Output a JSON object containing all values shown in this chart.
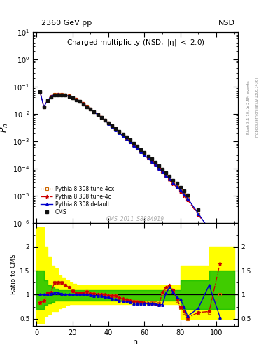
{
  "title_top": "2360 GeV pp",
  "title_top_right": "NSD",
  "main_title": "Charged multiplicity",
  "main_title_note": "(NSD, |#eta| < 2.0)",
  "ylabel_main": "P_n",
  "ylabel_ratio": "Ratio to CMS",
  "xlabel": "n",
  "watermark": "CMS_2011_S8884919",
  "right_label1": "Rivet 3.1.10, ≥ 2.5M events",
  "right_label2": "mcplots.cern.ch [arXiv:1306.3436]",
  "ylim_main": [
    1e-06,
    10
  ],
  "ylim_ratio": [
    0.35,
    2.5
  ],
  "xlim": [
    -2,
    112
  ],
  "legend": [
    "CMS",
    "Pythia 8.308 default",
    "Pythia 8.308 tune-4c",
    "Pythia 8.308 tune-4cx"
  ],
  "cms_n": [
    2,
    4,
    6,
    8,
    10,
    12,
    14,
    16,
    18,
    20,
    22,
    24,
    26,
    28,
    30,
    32,
    34,
    36,
    38,
    40,
    42,
    44,
    46,
    48,
    50,
    52,
    54,
    56,
    58,
    60,
    62,
    64,
    66,
    68,
    70,
    72,
    74,
    76,
    78,
    80,
    82,
    84,
    90,
    96,
    102
  ],
  "cms_pn": [
    0.065,
    0.018,
    0.03,
    0.042,
    0.048,
    0.05,
    0.05,
    0.048,
    0.044,
    0.038,
    0.033,
    0.028,
    0.023,
    0.018,
    0.015,
    0.012,
    0.0095,
    0.0075,
    0.006,
    0.0047,
    0.0037,
    0.0029,
    0.0023,
    0.0018,
    0.0014,
    0.0011,
    0.00085,
    0.00065,
    0.0005,
    0.00038,
    0.00029,
    0.00022,
    0.000165,
    0.000125,
    9.3e-05,
    6.9e-05,
    5.1e-05,
    3.7e-05,
    2.8e-05,
    2e-05,
    1.48e-05,
    1.05e-05,
    3e-06,
    8e-07,
    2.2e-07
  ],
  "pythia_default_pn": [
    0.063,
    0.018,
    0.03,
    0.043,
    0.05,
    0.052,
    0.051,
    0.048,
    0.044,
    0.038,
    0.033,
    0.028,
    0.023,
    0.018,
    0.0148,
    0.0118,
    0.0093,
    0.0073,
    0.0057,
    0.0044,
    0.0034,
    0.0026,
    0.002,
    0.00155,
    0.0012,
    0.00092,
    0.0007,
    0.000535,
    0.00041,
    0.00031,
    0.000235,
    0.000177,
    0.000132,
    9.85e-05,
    7.33e-05,
    5.43e-05,
    4e-05,
    2.92e-05,
    2.13e-05,
    1.54e-05,
    1.11e-05,
    7.9e-06,
    2.15e-06,
    5.75e-07,
    1.48e-07
  ],
  "pythia_4c_pn": [
    0.062,
    0.018,
    0.031,
    0.044,
    0.051,
    0.053,
    0.052,
    0.049,
    0.045,
    0.039,
    0.034,
    0.029,
    0.024,
    0.019,
    0.0153,
    0.0122,
    0.0096,
    0.0076,
    0.006,
    0.0046,
    0.0036,
    0.0028,
    0.00215,
    0.00165,
    0.00126,
    0.00096,
    0.00073,
    0.000555,
    0.00042,
    0.000317,
    0.000238,
    0.000178,
    0.000132,
    9.75e-05,
    7.15e-05,
    5.21e-05,
    3.78e-05,
    2.73e-05,
    1.96e-05,
    1.4e-05,
    9.97e-06,
    7e-06,
    1.9e-06,
    6e-07,
    2e-07
  ],
  "pythia_4cx_pn": [
    0.062,
    0.018,
    0.031,
    0.044,
    0.051,
    0.053,
    0.052,
    0.049,
    0.045,
    0.039,
    0.034,
    0.029,
    0.024,
    0.019,
    0.0153,
    0.0122,
    0.0096,
    0.0075,
    0.0059,
    0.0046,
    0.0036,
    0.0028,
    0.00214,
    0.00164,
    0.00125,
    0.00096,
    0.00073,
    0.00056,
    0.000425,
    0.000322,
    0.000243,
    0.000183,
    0.000137,
    0.000102,
    7.54e-05,
    5.55e-05,
    4.07e-05,
    2.96e-05,
    2.14e-05,
    1.54e-05,
    1.1e-05,
    7.8e-06,
    2.1e-06,
    5.7e-07,
    1.5e-07
  ],
  "ratio_n": [
    2,
    4,
    6,
    8,
    10,
    12,
    14,
    16,
    18,
    20,
    22,
    24,
    26,
    28,
    30,
    32,
    34,
    36,
    38,
    40,
    42,
    44,
    46,
    48,
    50,
    52,
    54,
    56,
    58,
    60,
    62,
    64,
    66,
    68,
    70,
    72,
    74,
    76,
    78,
    80,
    82,
    84,
    90,
    96,
    102
  ],
  "ratio_default": [
    1.0,
    1.0,
    1.0,
    1.02,
    1.04,
    1.04,
    1.02,
    1.0,
    1.0,
    1.0,
    1.0,
    1.0,
    1.0,
    1.0,
    0.99,
    0.98,
    0.98,
    0.97,
    0.95,
    0.94,
    0.92,
    0.9,
    0.87,
    0.86,
    0.86,
    0.84,
    0.82,
    0.82,
    0.82,
    0.82,
    0.81,
    0.81,
    0.8,
    0.79,
    0.79,
    1.03,
    1.15,
    1.05,
    0.95,
    0.9,
    0.75,
    0.55,
    0.72,
    1.2,
    0.53
  ],
  "ratio_4c": [
    0.83,
    0.87,
    1.03,
    1.05,
    1.25,
    1.25,
    1.25,
    1.2,
    1.15,
    1.08,
    1.03,
    1.04,
    1.04,
    1.06,
    1.02,
    1.02,
    1.01,
    1.01,
    1.0,
    0.98,
    0.97,
    0.97,
    0.93,
    0.92,
    0.9,
    0.87,
    0.86,
    0.85,
    0.84,
    0.83,
    0.82,
    0.81,
    0.8,
    0.78,
    1.05,
    1.15,
    1.2,
    1.1,
    0.9,
    0.75,
    0.65,
    0.52,
    0.63,
    0.65,
    1.65
  ],
  "ratio_4cx": [
    0.83,
    0.87,
    1.03,
    1.05,
    1.25,
    1.25,
    1.25,
    1.2,
    1.15,
    1.08,
    1.03,
    1.04,
    1.04,
    1.06,
    1.02,
    1.02,
    1.01,
    1.0,
    0.98,
    0.98,
    0.97,
    0.97,
    0.93,
    0.91,
    0.89,
    0.87,
    0.86,
    0.86,
    0.85,
    0.85,
    0.84,
    0.83,
    0.83,
    0.82,
    1.03,
    1.12,
    1.18,
    1.08,
    0.88,
    0.73,
    0.63,
    0.5,
    0.63,
    0.63,
    1.0
  ],
  "yellow_n": [
    0,
    2,
    4,
    6,
    8,
    10,
    12,
    14,
    16,
    18,
    20,
    22,
    24,
    26,
    28,
    30,
    32,
    34,
    36,
    38,
    40,
    42,
    44,
    46,
    48,
    50,
    52,
    54,
    56,
    58,
    60,
    62,
    64,
    66,
    68,
    70,
    72,
    74,
    76,
    78,
    80,
    82,
    84,
    86,
    88,
    90,
    92,
    96,
    100,
    102,
    110
  ],
  "yellow_lo": [
    0.4,
    0.4,
    0.55,
    0.6,
    0.65,
    0.65,
    0.72,
    0.75,
    0.78,
    0.8,
    0.8,
    0.8,
    0.8,
    0.8,
    0.8,
    0.8,
    0.8,
    0.8,
    0.8,
    0.8,
    0.8,
    0.8,
    0.8,
    0.8,
    0.8,
    0.8,
    0.8,
    0.8,
    0.8,
    0.8,
    0.8,
    0.8,
    0.8,
    0.8,
    0.8,
    0.8,
    0.8,
    0.8,
    0.8,
    0.8,
    0.5,
    0.5,
    0.5,
    0.5,
    0.5,
    0.5,
    0.5,
    0.5,
    0.5,
    0.5,
    0.5
  ],
  "yellow_hi": [
    2.4,
    2.4,
    2.0,
    1.8,
    1.6,
    1.55,
    1.4,
    1.35,
    1.3,
    1.25,
    1.22,
    1.2,
    1.2,
    1.2,
    1.2,
    1.2,
    1.2,
    1.2,
    1.2,
    1.2,
    1.2,
    1.2,
    1.2,
    1.2,
    1.2,
    1.2,
    1.2,
    1.2,
    1.2,
    1.2,
    1.2,
    1.2,
    1.2,
    1.2,
    1.2,
    1.2,
    1.2,
    1.2,
    1.2,
    1.2,
    1.6,
    1.6,
    1.6,
    1.6,
    1.6,
    1.6,
    1.6,
    2.0,
    2.0,
    2.0,
    2.0
  ],
  "green_n": [
    0,
    2,
    4,
    6,
    8,
    10,
    12,
    14,
    16,
    18,
    20,
    22,
    24,
    26,
    28,
    30,
    32,
    34,
    36,
    38,
    40,
    42,
    44,
    46,
    48,
    50,
    52,
    54,
    56,
    58,
    60,
    62,
    64,
    66,
    68,
    70,
    72,
    74,
    76,
    78,
    80,
    82,
    84,
    86,
    88,
    90,
    92,
    96,
    100,
    102,
    110
  ],
  "green_lo": [
    0.7,
    0.7,
    0.78,
    0.82,
    0.85,
    0.87,
    0.88,
    0.88,
    0.88,
    0.88,
    0.88,
    0.88,
    0.88,
    0.88,
    0.88,
    0.88,
    0.88,
    0.88,
    0.88,
    0.88,
    0.88,
    0.88,
    0.88,
    0.88,
    0.88,
    0.88,
    0.88,
    0.88,
    0.88,
    0.88,
    0.88,
    0.88,
    0.88,
    0.88,
    0.88,
    0.88,
    0.88,
    0.88,
    0.88,
    0.88,
    0.7,
    0.7,
    0.7,
    0.7,
    0.7,
    0.7,
    0.7,
    0.7,
    0.7,
    0.7,
    0.7
  ],
  "green_hi": [
    1.5,
    1.5,
    1.3,
    1.2,
    1.15,
    1.12,
    1.1,
    1.1,
    1.1,
    1.1,
    1.1,
    1.1,
    1.1,
    1.1,
    1.1,
    1.1,
    1.1,
    1.1,
    1.1,
    1.1,
    1.1,
    1.1,
    1.1,
    1.1,
    1.1,
    1.1,
    1.1,
    1.1,
    1.1,
    1.1,
    1.1,
    1.1,
    1.1,
    1.1,
    1.1,
    1.1,
    1.1,
    1.1,
    1.1,
    1.1,
    1.3,
    1.3,
    1.3,
    1.3,
    1.3,
    1.3,
    1.3,
    1.5,
    1.5,
    1.5,
    1.5
  ],
  "color_cms": "#111111",
  "color_default": "#0000cc",
  "color_4c": "#cc0000",
  "color_4cx": "#cc6600",
  "color_yellow": "#ffff00",
  "color_green": "#00bb00"
}
